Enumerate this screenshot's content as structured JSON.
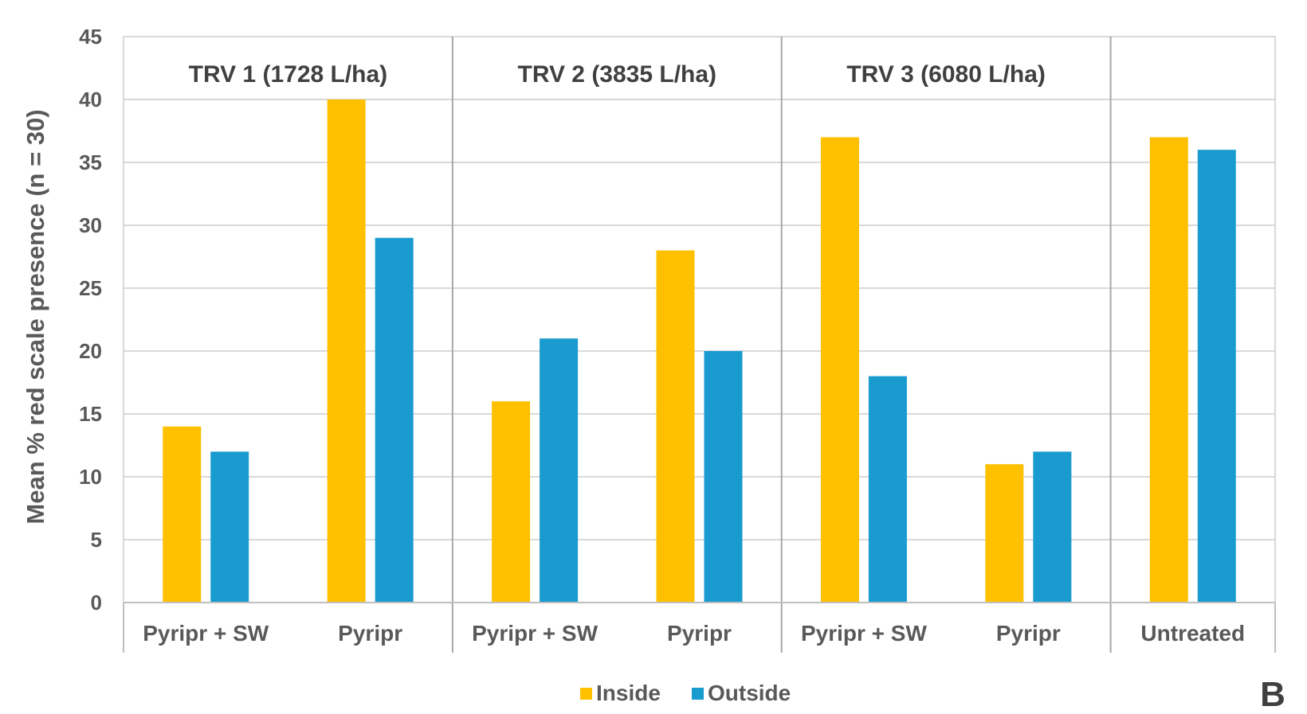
{
  "chart_data": {
    "type": "bar",
    "ylabel": "Mean % red scale presence (n = 30)",
    "ylim": [
      0,
      45
    ],
    "yticks": [
      0,
      5,
      10,
      15,
      20,
      25,
      30,
      35,
      40,
      45
    ],
    "grid": true,
    "legend_position": "bottom",
    "panel_label": "B",
    "groups": [
      {
        "label": "TRV 1 (1728 L/ha)",
        "categories": [
          "Pyripr + SW",
          "Pyripr"
        ]
      },
      {
        "label": "TRV 2 (3835 L/ha)",
        "categories": [
          "Pyripr + SW",
          "Pyripr"
        ]
      },
      {
        "label": "TRV 3 (6080 L/ha)",
        "categories": [
          "Pyripr + SW",
          "Pyripr"
        ]
      },
      {
        "label": "",
        "categories": [
          "Untreated"
        ]
      }
    ],
    "categories": [
      "Pyripr + SW",
      "Pyripr",
      "Pyripr + SW",
      "Pyripr",
      "Pyripr + SW",
      "Pyripr",
      "Untreated"
    ],
    "series": [
      {
        "name": "Inside",
        "color": "#FFC000",
        "values": [
          14,
          40,
          16,
          28,
          37,
          11,
          37
        ]
      },
      {
        "name": "Outside",
        "color": "#1A9BD0",
        "values": [
          12,
          29,
          21,
          20,
          18,
          12,
          36
        ]
      }
    ]
  }
}
